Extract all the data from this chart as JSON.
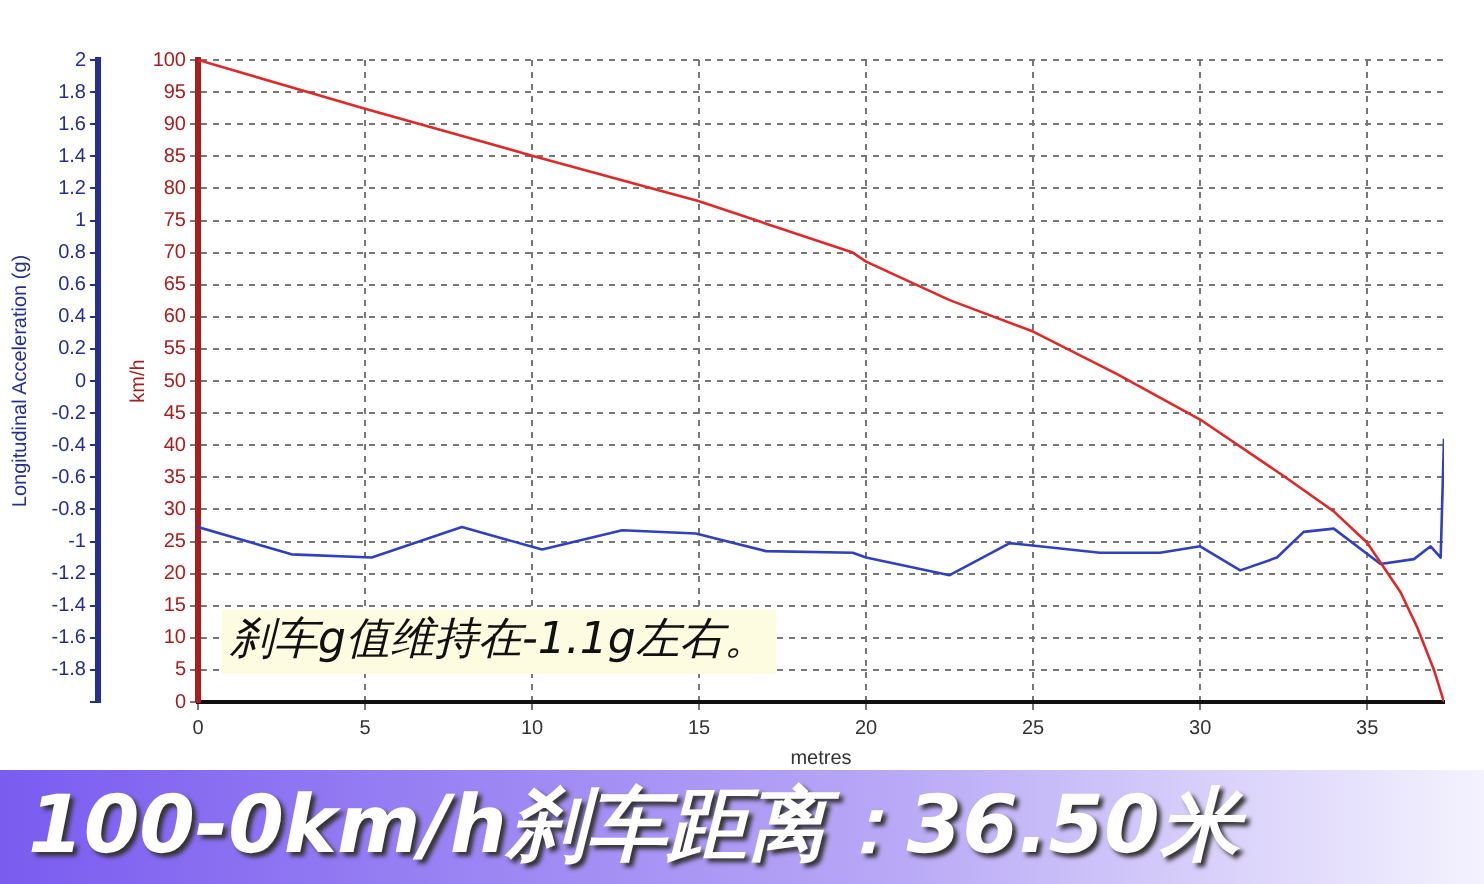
{
  "chart_data": {
    "type": "line",
    "title": "100-0km/h刹车距离：36.50米",
    "xlabel": "metres",
    "ylabel": "Longitudinal Acceleration (g)",
    "y2label": "km/h",
    "annotations": [
      "刹车g值维持在-1.1g左右。"
    ],
    "xlim": [
      0,
      37.3
    ],
    "xticks": [
      0,
      5,
      10,
      15,
      20,
      25,
      30,
      35
    ],
    "ylim": [
      -2,
      2
    ],
    "yticks": [
      {
        "value": -2,
        "label": null
      },
      -1.8,
      -1.6,
      -1.4,
      -1.2,
      -1,
      -0.8,
      -0.6,
      -0.4,
      -0.2,
      0,
      0.2,
      0.4,
      0.6,
      0.8,
      1,
      1.2,
      1.4,
      1.6,
      1.8,
      2
    ],
    "y2lim": [
      0,
      100
    ],
    "y2ticks": [
      0,
      5,
      10,
      15,
      20,
      25,
      30,
      35,
      40,
      45,
      50,
      55,
      60,
      65,
      70,
      75,
      80,
      85,
      90,
      95,
      100
    ],
    "grid": true,
    "legend": false,
    "marker": "none",
    "line_style": "solid",
    "series": [
      {
        "color": "#e02828",
        "axis": "y2",
        "x": [
          0,
          5,
          10,
          15,
          19.6,
          20,
          22.5,
          25,
          27.5,
          30,
          32.5,
          34,
          35,
          36,
          36.5,
          37,
          37.3
        ],
        "values": [
          100,
          92.4,
          85.1,
          78,
          70,
          68.6,
          62.6,
          57.7,
          51.1,
          44,
          35.2,
          29.7,
          24.8,
          17.1,
          11.6,
          5,
          0
        ]
      },
      {
        "color": "#3040c0",
        "x": [
          0,
          2.8,
          5.2,
          7.9,
          10.3,
          12.7,
          14.9,
          17,
          19.6,
          20,
          22.5,
          24.3,
          27,
          28.8,
          30,
          31.2,
          32.3,
          33.1,
          34,
          35.4,
          36.4,
          36.9,
          37.2,
          37.3
        ],
        "values": [
          -0.91,
          -1.08,
          -1.1,
          -0.91,
          -1.05,
          -0.93,
          -0.95,
          -1.06,
          -1.07,
          -1.1,
          -1.21,
          -1.01,
          -1.07,
          -1.07,
          -1.03,
          -1.18,
          -1.1,
          -0.94,
          -0.92,
          -1.14,
          -1.11,
          -1.03,
          -1.1,
          -0.36
        ]
      }
    ]
  }
}
